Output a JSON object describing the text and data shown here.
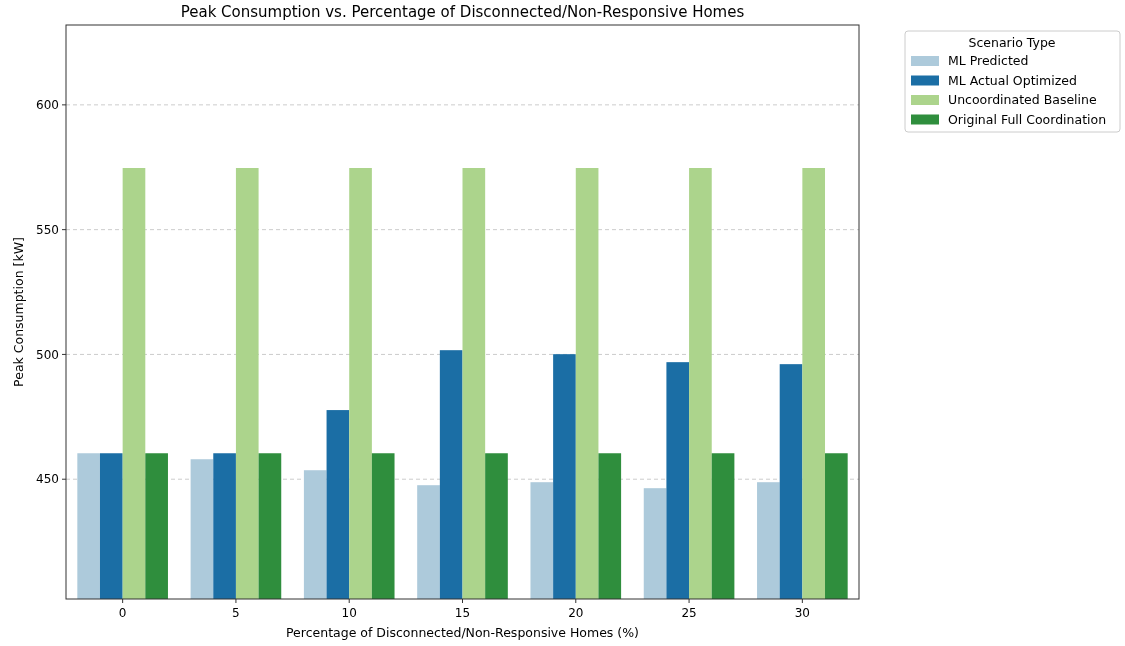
{
  "chart_data": {
    "type": "bar",
    "title": "Peak Consumption vs. Percentage of Disconnected/Non-Responsive Homes",
    "xlabel": "Percentage of Disconnected/Non-Responsive Homes (%)",
    "ylabel": "Peak Consumption [kW]",
    "legend_title": "Scenario Type",
    "legend": "top right",
    "grid": "y",
    "categories": [
      "0",
      "5",
      "10",
      "15",
      "20",
      "25",
      "30"
    ],
    "ylim": [
      402,
      632
    ],
    "yticks": [
      450,
      500,
      550,
      600
    ],
    "series": [
      {
        "name": "ML Predicted",
        "color": "#adcadb",
        "values": [
          460.4,
          458,
          453.6,
          447.6,
          448.8,
          446.4,
          448.8
        ]
      },
      {
        "name": "ML Actual Optimized",
        "color": "#1b6ea5",
        "values": [
          460.4,
          460.4,
          477.7,
          501.7,
          500.1,
          496.9,
          496.1
        ]
      },
      {
        "name": "Uncoordinated Baseline",
        "color": "#acd48c",
        "values": [
          574.7,
          574.7,
          574.7,
          574.7,
          574.7,
          574.7,
          574.7
        ]
      },
      {
        "name": "Original Full Coordination",
        "color": "#2f8e3d",
        "values": [
          460.4,
          460.4,
          460.4,
          460.4,
          460.4,
          460.4,
          460.4
        ]
      }
    ]
  }
}
